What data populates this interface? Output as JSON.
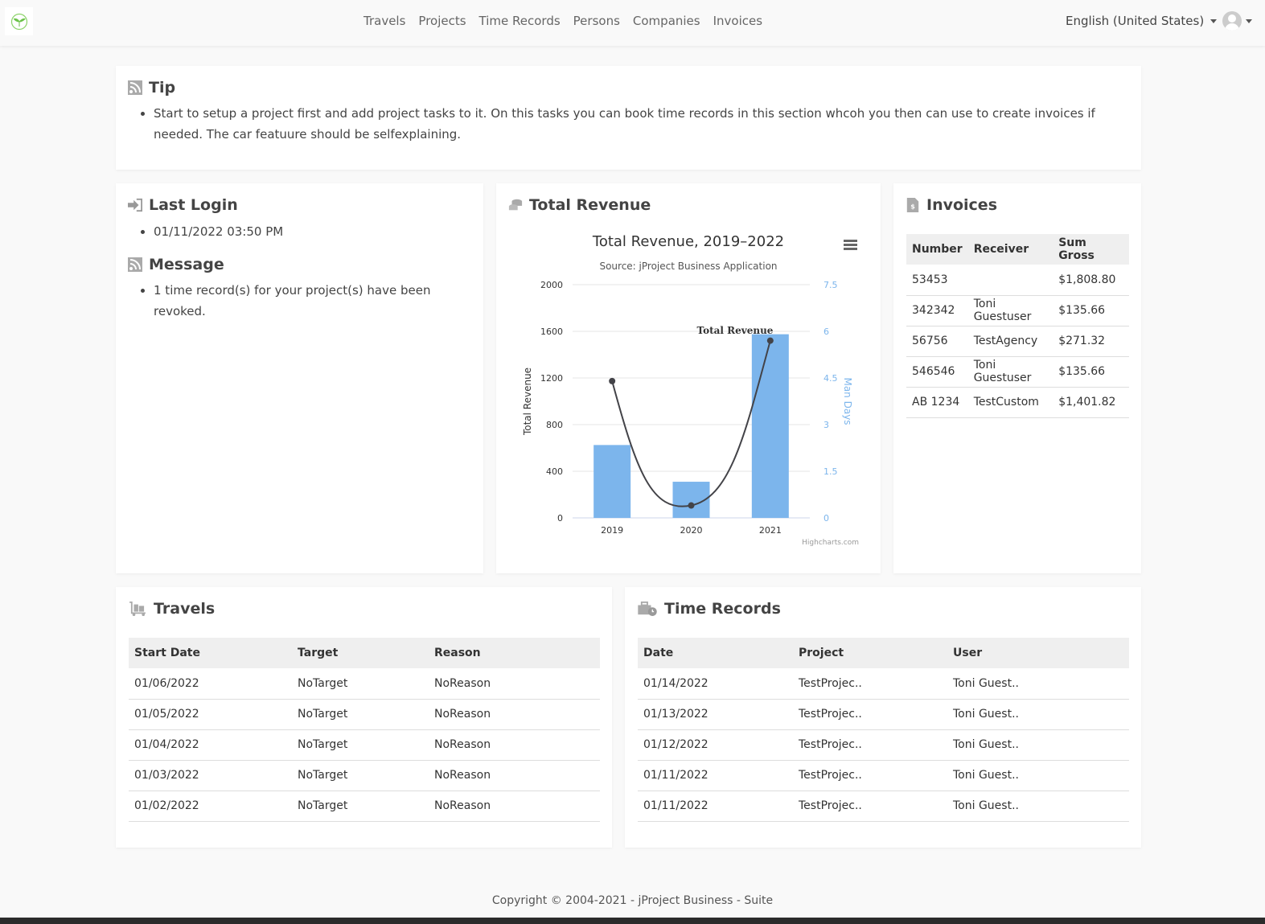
{
  "nav": {
    "items": [
      "Travels",
      "Projects",
      "Time Records",
      "Persons",
      "Companies",
      "Invoices"
    ],
    "language": "English (United States)"
  },
  "tip": {
    "title": "Tip",
    "text": "Start to setup a project first and add project tasks to it. On this tasks you can book time records in this section whcoh you then can use to create invoices if needed. The car featuure should be selfexplaining."
  },
  "last_login": {
    "title": "Last Login",
    "value": "01/11/2022 03:50 PM"
  },
  "message": {
    "title": "Message",
    "text": "1 time record(s) for your project(s) have been revoked."
  },
  "revenue": {
    "title": "Total Revenue",
    "credit": "Highcharts.com"
  },
  "chart_data": {
    "type": "bar",
    "title": "Total Revenue, 2019–2022",
    "subtitle": "Source: jProject Business Application",
    "categories": [
      "2019",
      "2020",
      "2021"
    ],
    "series": [
      {
        "name": "Total Revenue",
        "type": "bar",
        "axis": "left",
        "values": [
          625,
          310,
          1575
        ],
        "color": "#7cb5ec"
      },
      {
        "type": "line",
        "axis": "right",
        "values": [
          4.4,
          0.4,
          5.7
        ],
        "color": "#434348"
      }
    ],
    "ylabel": "Total Revenue",
    "ylim": [
      0,
      2000
    ],
    "yticks": [
      0,
      400,
      800,
      1200,
      1600,
      2000
    ],
    "y2label": "Man Days",
    "y2lim": [
      0,
      7.5
    ],
    "y2ticks": [
      "0",
      "1.5",
      "3",
      "4.5",
      "6",
      "7.5"
    ],
    "grid": true,
    "annotation": "Total Revenue"
  },
  "invoices": {
    "title": "Invoices",
    "headers": [
      "Number",
      "Receiver",
      "Sum Gross"
    ],
    "rows": [
      [
        "53453",
        "",
        "$1,808.80"
      ],
      [
        "342342",
        "Toni Guestuser",
        "$135.66"
      ],
      [
        "56756",
        "TestAgency",
        "$271.32"
      ],
      [
        "546546",
        "Toni Guestuser",
        "$135.66"
      ],
      [
        "AB 1234",
        "TestCustom",
        "$1,401.82"
      ]
    ]
  },
  "travels": {
    "title": "Travels",
    "headers": [
      "Start Date",
      "Target",
      "Reason"
    ],
    "rows": [
      [
        "01/06/2022",
        "NoTarget",
        "NoReason"
      ],
      [
        "01/05/2022",
        "NoTarget",
        "NoReason"
      ],
      [
        "01/04/2022",
        "NoTarget",
        "NoReason"
      ],
      [
        "01/03/2022",
        "NoTarget",
        "NoReason"
      ],
      [
        "01/02/2022",
        "NoTarget",
        "NoReason"
      ]
    ]
  },
  "time_records": {
    "title": "Time Records",
    "headers": [
      "Date",
      "Project",
      "User"
    ],
    "rows": [
      [
        "01/14/2022",
        "TestProjec..",
        "Toni Guest.."
      ],
      [
        "01/13/2022",
        "TestProjec..",
        "Toni Guest.."
      ],
      [
        "01/12/2022",
        "TestProjec..",
        "Toni Guest.."
      ],
      [
        "01/11/2022",
        "TestProjec..",
        "Toni Guest.."
      ],
      [
        "01/11/2022",
        "TestProjec..",
        "Toni Guest.."
      ]
    ]
  },
  "footer": "Copyright © 2004-2021 - jProject Business - Suite"
}
